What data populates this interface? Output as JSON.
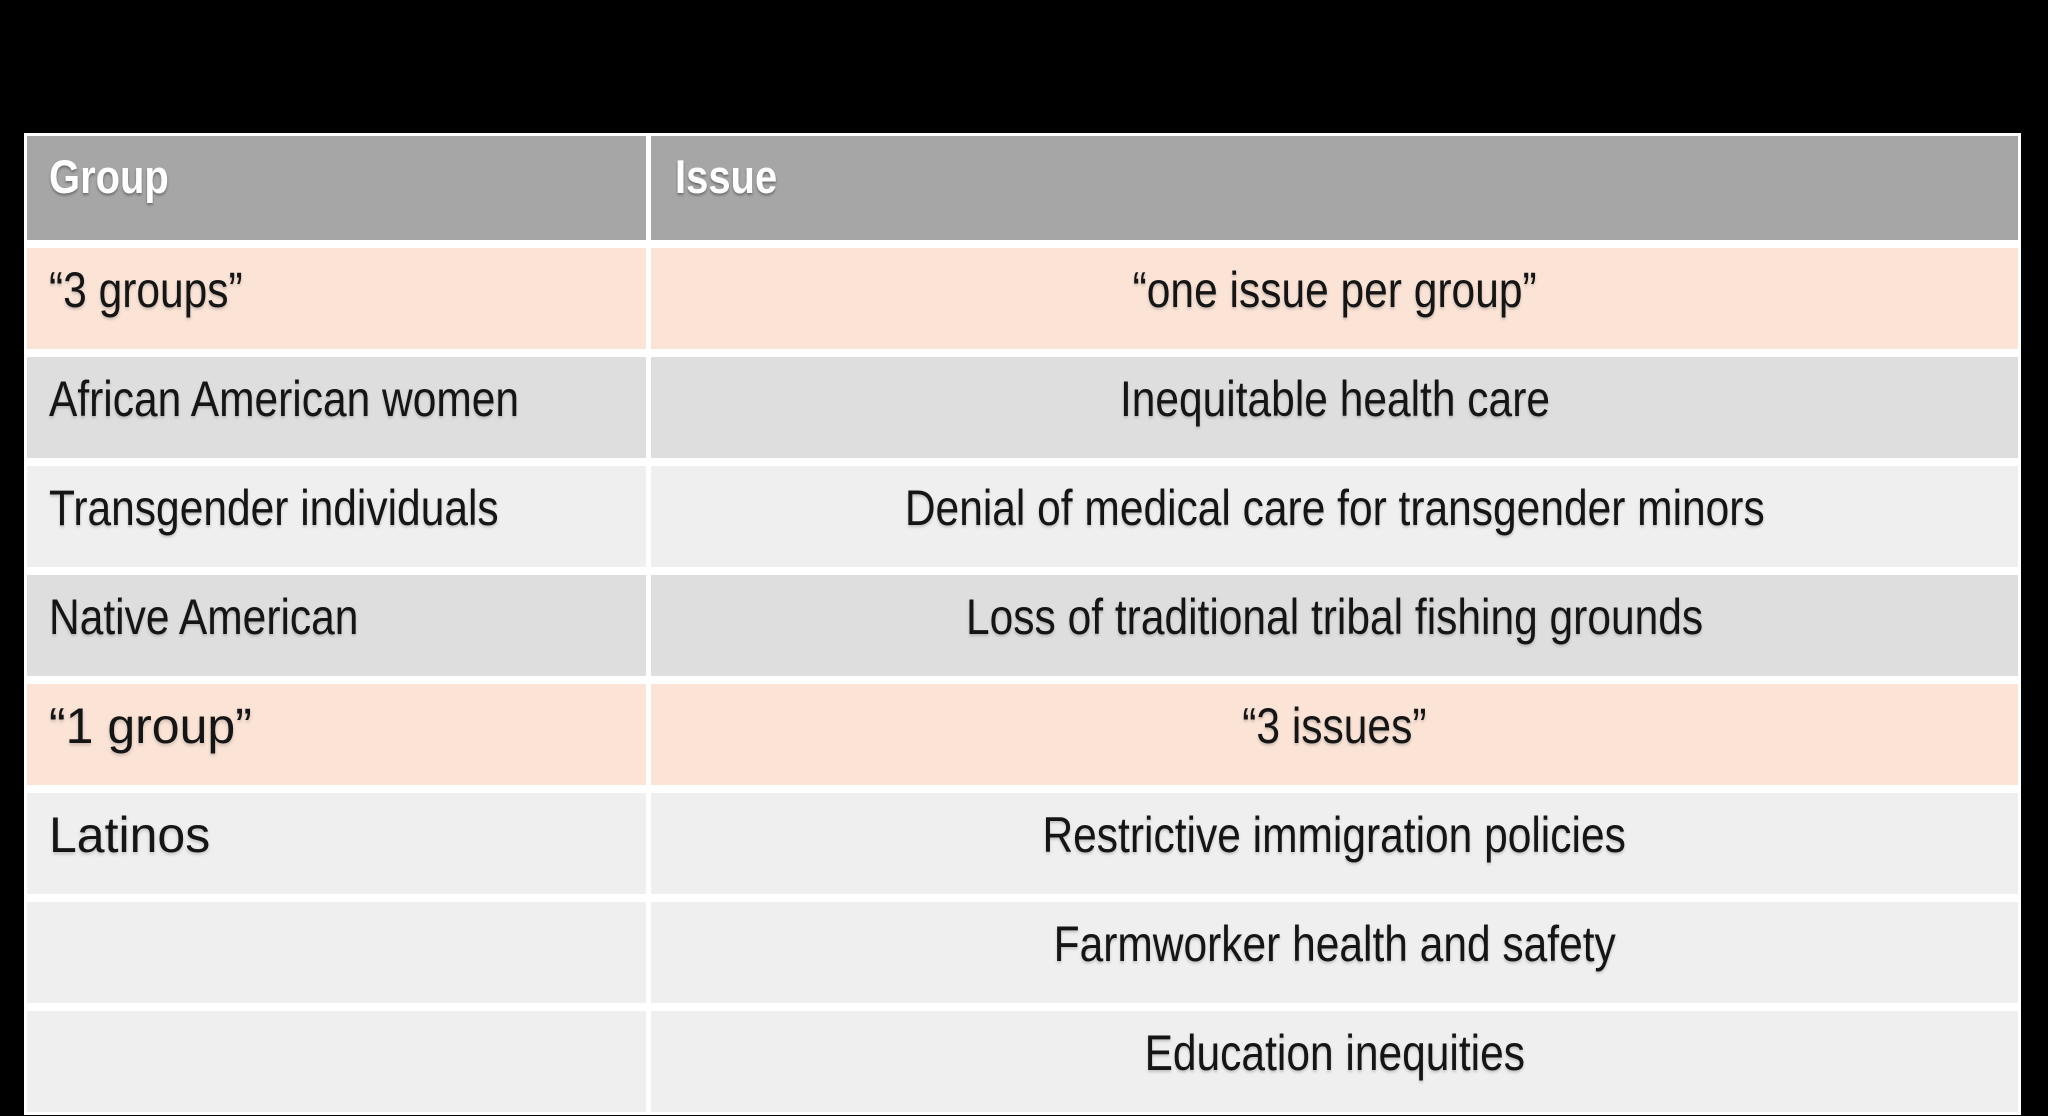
{
  "slide": {
    "background_color": "#000000"
  },
  "table": {
    "columns": [
      "Group",
      "Issue"
    ],
    "header": {
      "bg_color": "#a6a6a6",
      "text_color": "#ffffff"
    },
    "row_colors": {
      "peach": "#fbe3d5",
      "gray": "#dedede",
      "light": "#efefef"
    },
    "divider_color": "#ffffff",
    "rows": [
      {
        "group": "“3 groups”",
        "issue": "“one issue per group”",
        "bg": "peach",
        "alt": false
      },
      {
        "group": "African American women",
        "issue": "Inequitable health care",
        "bg": "gray",
        "alt": false
      },
      {
        "group": "Transgender individuals",
        "issue": "Denial of medical care for transgender minors",
        "bg": "light",
        "alt": false
      },
      {
        "group": "Native American",
        "issue": "Loss of traditional tribal fishing grounds",
        "bg": "gray",
        "alt": false
      },
      {
        "group": "“1 group”",
        "issue": "“3 issues”",
        "bg": "peach",
        "alt": true
      },
      {
        "group": "Latinos",
        "issue": "Restrictive immigration policies",
        "bg": "light",
        "alt": true
      },
      {
        "group": "",
        "issue": "Farmworker health and safety",
        "bg": "light",
        "alt": false
      },
      {
        "group": "",
        "issue": "Education inequities",
        "bg": "light",
        "alt": false
      }
    ]
  }
}
